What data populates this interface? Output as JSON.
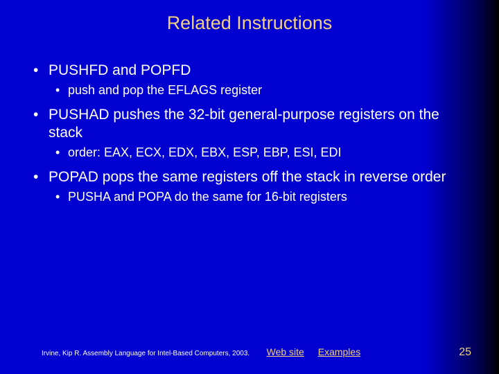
{
  "title": "Related Instructions",
  "bullets": {
    "b1": "PUSHFD and POPFD",
    "b1s1": "push and pop the EFLAGS register",
    "b2": "PUSHAD pushes the 32-bit general-purpose registers on the stack",
    "b2s1": "order: EAX, ECX, EDX, EBX, ESP, EBP, ESI, EDI",
    "b3": "POPAD pops the same registers off the stack in reverse order",
    "b3s1": "PUSHA and POPA do the same for 16-bit registers"
  },
  "footer": {
    "citation": "Irvine, Kip R. Assembly Language for Intel-Based Computers, 2003.",
    "link1": "Web site",
    "link2": "Examples",
    "page": "25"
  },
  "colors": {
    "title_color": "#f2d080",
    "text_color": "#ffffff",
    "link_color": "#f2d080",
    "bg_main": "#0000d0",
    "bg_edge": "#000000"
  }
}
